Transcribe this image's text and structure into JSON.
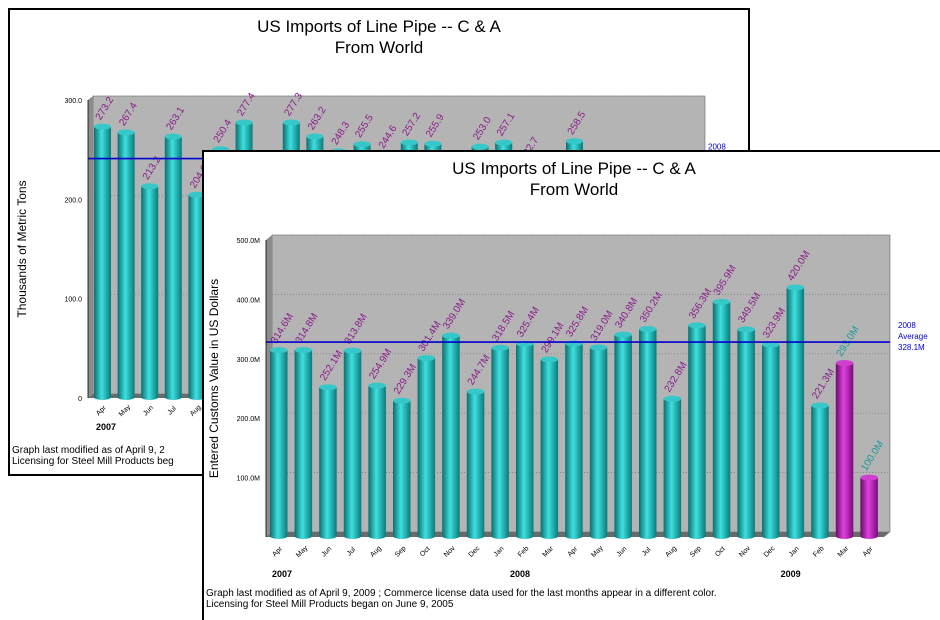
{
  "chart_data": [
    {
      "type": "bar",
      "title_line1": "US Imports of Line Pipe -- C & A",
      "title_line2": "From World",
      "ylabel": "Thousands of Metric Tons",
      "ylim": [
        0,
        300
      ],
      "yticks": [
        "0",
        "100.0",
        "200.0",
        "300.0"
      ],
      "categories": [
        "Apr",
        "May",
        "Jun",
        "Jul",
        "Aug"
      ],
      "values": [
        273.2,
        267.4,
        213.2,
        263.1,
        204.6
      ],
      "labels": [
        "273.2",
        "267.4",
        "213.2",
        "263.1",
        "204.6"
      ],
      "partial_values": [
        250.4,
        277.4,
        null,
        277.3,
        263.2,
        248.3,
        255.5,
        244.6,
        257.2,
        255.9,
        null,
        253.0,
        257.1,
        232.7,
        null,
        258.5
      ],
      "partial_labels": [
        "250.4",
        "277.4",
        "",
        "277.3",
        "263.2",
        "248.3",
        "255.5",
        "244.6",
        "257.2",
        "255.9",
        "",
        "253.0",
        "257.1",
        "232.7",
        "",
        "258.5"
      ],
      "year_labels": [
        {
          "text": "2007",
          "index": 0
        }
      ],
      "average_value": 241,
      "average_label": "2008",
      "footnote1": "Graph last modified as of April 9, 2",
      "footnote2": "Licensing for Steel Mill Products beg",
      "colors": {
        "bar": "#1aa0a0",
        "label": "#8a1a8a",
        "average": "#0000cc"
      }
    },
    {
      "type": "bar",
      "title_line1": "US Imports of Line Pipe -- C & A",
      "title_line2": "From World",
      "ylabel": "Entered Customs Value in US Dollars",
      "ylim": [
        0,
        500
      ],
      "yticks": [
        "100.0M",
        "200.0M",
        "300.0M",
        "400.0M",
        "500.0M"
      ],
      "categories": [
        "Apr",
        "May",
        "Jun",
        "Jul",
        "Aug",
        "Sep",
        "Oct",
        "Nov",
        "Dec",
        "Jan",
        "Feb",
        "Mar",
        "Apr",
        "May",
        "Jun",
        "Jul",
        "Aug",
        "Sep",
        "Oct",
        "Nov",
        "Dec",
        "Jan",
        "Feb",
        "Mar",
        "Apr"
      ],
      "values": [
        314.6,
        314.8,
        252.1,
        313.8,
        254.9,
        229.3,
        301.4,
        339.0,
        244.7,
        318.5,
        325.4,
        299.1,
        325.8,
        319.0,
        340.8,
        350.2,
        232.8,
        356.3,
        395.9,
        349.5,
        323.9,
        420.0,
        221.3,
        293.0,
        100.0
      ],
      "labels": [
        "314.6M",
        "314.8M",
        "252.1M",
        "313.8M",
        "254.9M",
        "229.3M",
        "301.4M",
        "339.0M",
        "244.7M",
        "318.5M",
        "325.4M",
        "299.1M",
        "325.8M",
        "319.0M",
        "340.8M",
        "350.2M",
        "232.8M",
        "356.3M",
        "395.9M",
        "349.5M",
        "323.9M",
        "420.0M",
        "221.3M",
        "293.0M",
        "100.0M"
      ],
      "highlight_from_index": 23,
      "year_labels": [
        {
          "text": "2007",
          "index": 0
        },
        {
          "text": "2008",
          "index": 10
        },
        {
          "text": "2009",
          "index": 21
        }
      ],
      "average_value": 328.1,
      "average_label_lines": [
        "2008",
        "Average",
        "328.1M"
      ],
      "footnote1": "Graph last modified as of April 9, 2009     ; Commerce license data used for the last months appear in a different color.",
      "footnote2": "Licensing for Steel Mill Products began on June 9, 2005",
      "colors": {
        "bar": "#1aa0a0",
        "highlight": "#a010a0",
        "label": "#8a1a8a",
        "highlight_label": "#1a9a9a",
        "average": "#0000cc"
      }
    }
  ]
}
